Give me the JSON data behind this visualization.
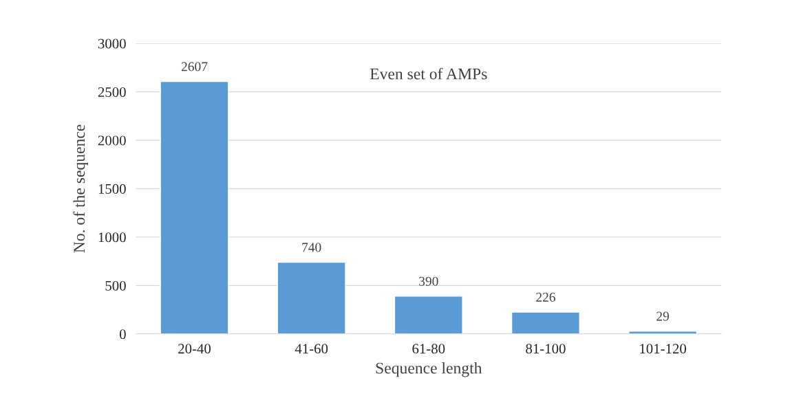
{
  "chart_data": {
    "type": "bar",
    "title": "Even set of AMPs",
    "xlabel": "Sequence length",
    "ylabel": "No. of the sequence",
    "categories": [
      "20-40",
      "41-60",
      "61-80",
      "81-100",
      "101-120"
    ],
    "values": [
      2607,
      740,
      390,
      226,
      29
    ],
    "color": "#5b9bd5",
    "ylim": [
      0,
      3000
    ],
    "yticks": [
      0,
      500,
      1000,
      1500,
      2000,
      2500,
      3000
    ],
    "grid": "y",
    "data_labels": true,
    "legend": false
  }
}
